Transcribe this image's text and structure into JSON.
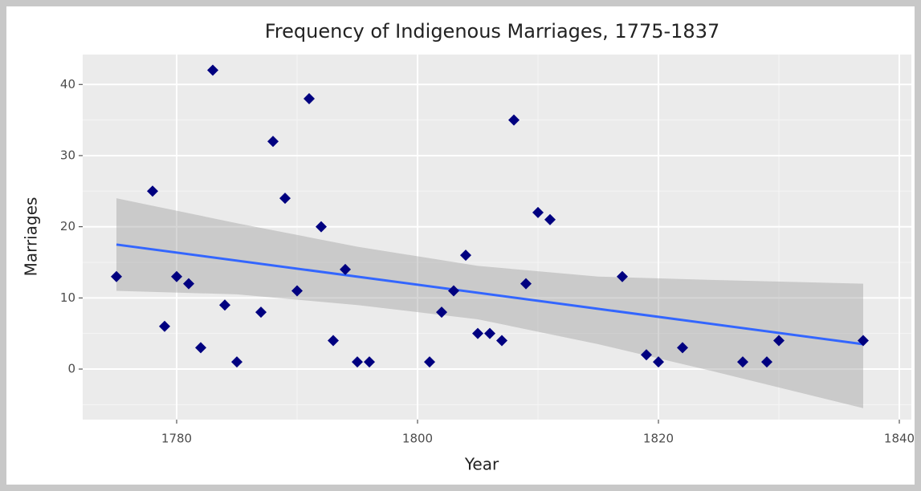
{
  "chart_data": {
    "type": "scatter",
    "title": "Frequency of Indigenous Marriages, 1775-1837",
    "x_label": "Year",
    "y_label": "Marriages",
    "xlim": [
      1772.2,
      1841
    ],
    "ylim": [
      -7.1,
      44.2
    ],
    "xticks": [
      1780,
      1800,
      1820,
      1840
    ],
    "yticks": [
      0,
      10,
      20,
      30,
      40
    ],
    "grid": true,
    "series": [
      {
        "name": "Marriages",
        "color": "#000080",
        "x": [
          1775,
          1778,
          1779,
          1780,
          1781,
          1782,
          1783,
          1784,
          1785,
          1787,
          1788,
          1789,
          1790,
          1791,
          1792,
          1793,
          1794,
          1795,
          1796,
          1801,
          1802,
          1803,
          1804,
          1805,
          1806,
          1807,
          1808,
          1809,
          1810,
          1811,
          1817,
          1819,
          1820,
          1822,
          1827,
          1829,
          1830,
          1837
        ],
        "values": [
          13,
          25,
          6,
          13,
          12,
          3,
          42,
          9,
          1,
          8,
          32,
          24,
          11,
          38,
          20,
          4,
          14,
          1,
          1,
          1,
          8,
          11,
          16,
          5,
          5,
          4,
          35,
          12,
          22,
          21,
          13,
          2,
          1,
          3,
          1,
          1,
          4,
          4
        ]
      }
    ],
    "fit": {
      "color": "#3366ff",
      "x": [
        1775,
        1837
      ],
      "values": [
        17.5,
        3.5
      ]
    },
    "band": {
      "color": "#999999",
      "x": [
        1775,
        1785,
        1795,
        1805,
        1815,
        1825,
        1837
      ],
      "upper": [
        24,
        20.5,
        17.2,
        14.5,
        13,
        12.5,
        12
      ],
      "lower": [
        11,
        10.5,
        9,
        7,
        3.5,
        -0.5,
        -5.5
      ]
    }
  }
}
